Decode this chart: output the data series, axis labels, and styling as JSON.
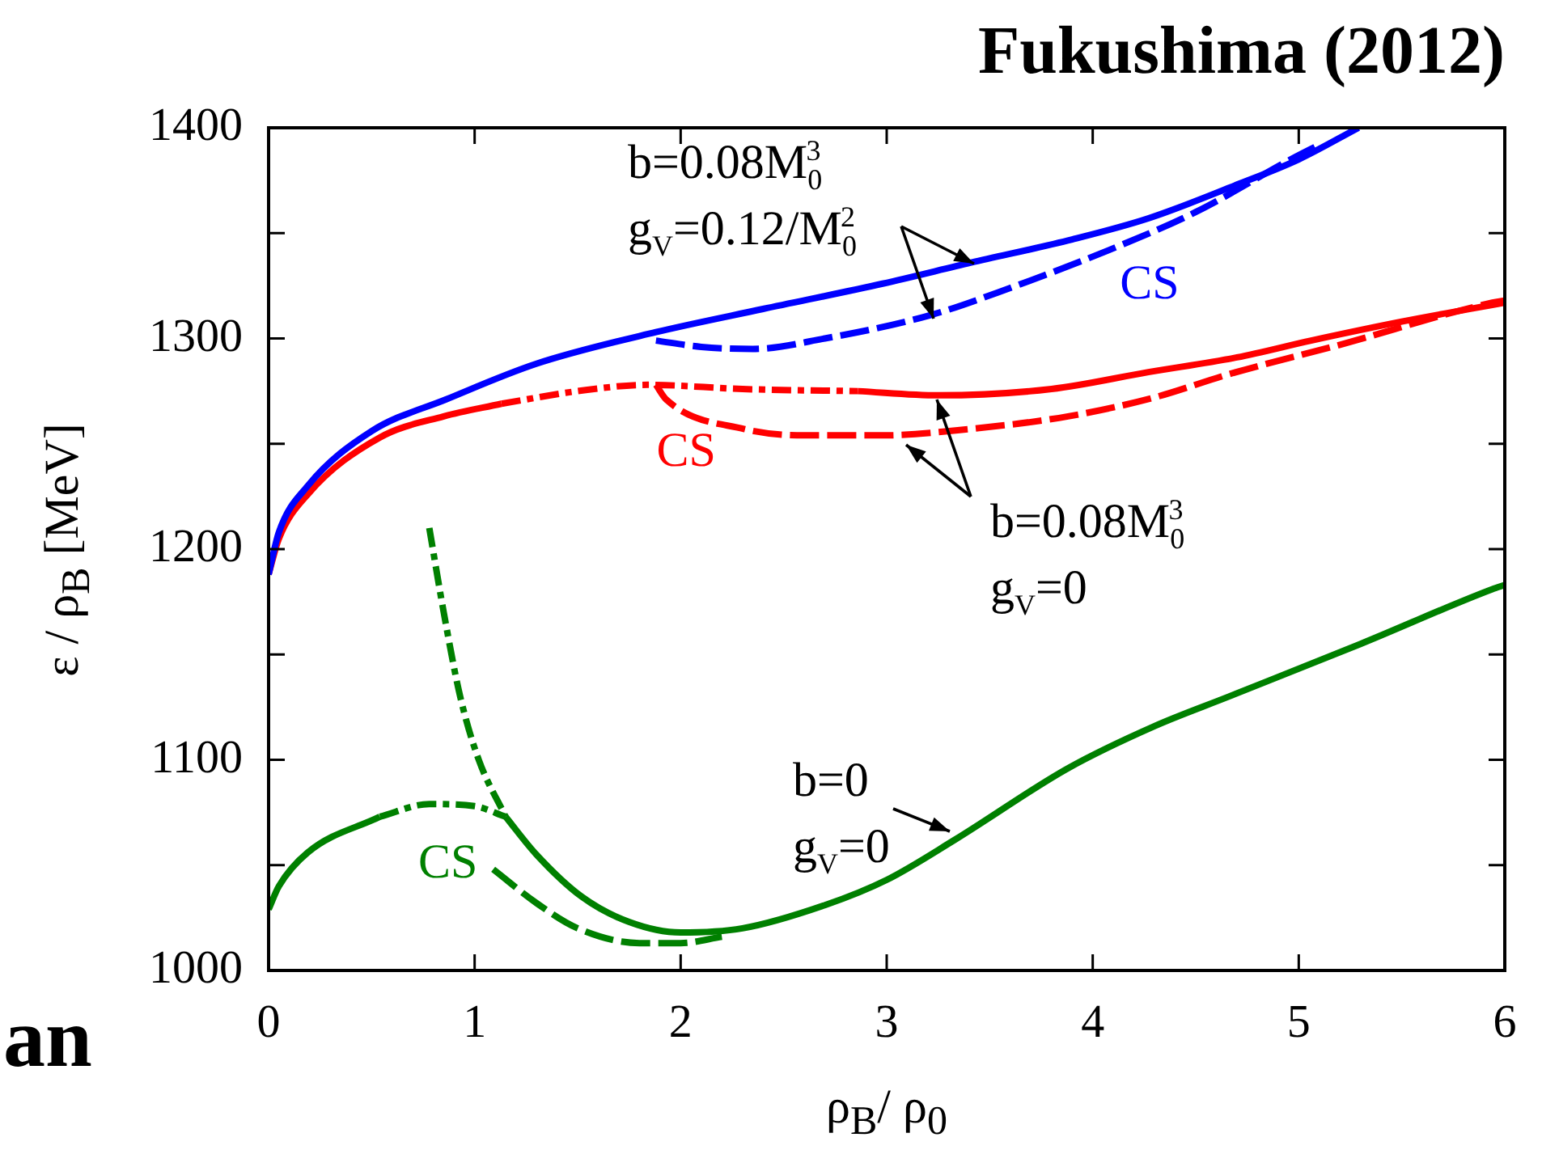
{
  "chart_data": {
    "type": "line",
    "title": "Fukushima (2012)",
    "xlabel": "ρ$_{B}$/ ρ$_{0}$",
    "ylabel": "ε / ρ$_{B}$ [MeV]",
    "xlim": [
      0,
      6
    ],
    "xticks": [
      0,
      1,
      2,
      3,
      4,
      5,
      6
    ],
    "ylim": [
      1000,
      1400
    ],
    "yticks": [
      1000,
      {
        "value": 1050,
        "label": null
      },
      1100,
      {
        "value": 1150,
        "label": null
      },
      1200,
      {
        "value": 1250,
        "label": null
      },
      1300,
      {
        "value": 1350,
        "label": null
      },
      1400
    ],
    "grid": false,
    "legend": false,
    "marker": "none",
    "series": [
      {
        "color": "#0000ff",
        "line_style": "solid",
        "x": [
          0,
          0.05,
          0.19,
          0.5,
          0.86,
          1.3,
          1.88,
          2.4,
          2.98,
          3.41,
          3.9,
          4.27,
          4.7,
          5.0,
          5.29
        ],
        "values": [
          1188,
          1208,
          1230,
          1256,
          1271,
          1288,
          1303,
          1314,
          1326,
          1336,
          1347,
          1357,
          1373,
          1385,
          1400
        ]
      },
      {
        "name": "CS",
        "color": "#0000ff",
        "line_style": "dashed",
        "x": [
          1.88,
          2.1,
          2.35,
          2.7,
          3.21,
          3.6,
          4.08,
          4.5,
          4.98,
          5.1
        ],
        "values": [
          1299,
          1296,
          1295,
          1300,
          1311,
          1324,
          1342,
          1360,
          1386,
          1392
        ]
      },
      {
        "color": "#ff0000",
        "line_style": "solid",
        "x": [
          0,
          0.05,
          0.19,
          0.54,
          0.85,
          1.13
        ],
        "values": [
          1188,
          1205,
          1226,
          1253,
          1263,
          1269
        ]
      },
      {
        "color": "#ff0000",
        "line_style": "solid",
        "x": [
          2.86,
          3.25,
          3.8,
          4.27,
          4.7,
          5.06,
          5.5,
          6
        ],
        "values": [
          1275,
          1273,
          1276,
          1284,
          1291,
          1299,
          1308,
          1317
        ]
      },
      {
        "color": "#ff0000",
        "line_style": "dotted",
        "x": [
          1.13,
          1.5,
          1.84,
          2.3,
          2.86
        ],
        "values": [
          1269,
          1275,
          1278,
          1276,
          1275
        ]
      },
      {
        "name": "CS",
        "color": "#ff0000",
        "line_style": "dashed",
        "x": [
          1.88,
          1.93,
          2.31,
          2.6,
          2.98,
          3.4,
          3.88,
          4.3,
          4.66,
          5.2,
          5.94,
          6
        ],
        "values": [
          1278,
          1271,
          1257,
          1254,
          1254,
          1257,
          1263,
          1272,
          1283,
          1297,
          1317,
          1318
        ]
      },
      {
        "color": "#008000",
        "line_style": "solid",
        "x": [
          0,
          0.05,
          0.19,
          0.54
        ],
        "values": [
          1029,
          1040,
          1056,
          1073
        ]
      },
      {
        "color": "#008000",
        "line_style": "solid",
        "x": [
          1.15,
          1.3,
          1.52,
          1.75,
          2.0,
          2.3,
          2.7,
          3.0,
          3.33,
          3.88,
          4.3,
          4.66,
          5.3,
          5.94,
          6
        ],
        "values": [
          1073,
          1055,
          1035,
          1023,
          1018,
          1020,
          1031,
          1043,
          1062,
          1096,
          1116,
          1130,
          1155,
          1181,
          1183
        ]
      },
      {
        "color": "#008000",
        "line_style": "dotted",
        "x": [
          0.54,
          0.78,
          1.0,
          1.15
        ],
        "values": [
          1073,
          1079,
          1078,
          1073
        ]
      },
      {
        "color": "#008000",
        "line_style": "dotted",
        "x": [
          0.78,
          0.85,
          0.93,
          1.02,
          1.15
        ],
        "values": [
          1210,
          1170,
          1130,
          1100,
          1073
        ]
      },
      {
        "name": "CS",
        "color": "#008000",
        "line_style": "dashed",
        "x": [
          1.09,
          1.3,
          1.5,
          1.8,
          2.0,
          2.2
        ],
        "values": [
          1048,
          1032,
          1020,
          1013,
          1013,
          1016
        ]
      }
    ],
    "annotations": [
      "b=0.08M$_{0}$$^{3}$\ng$_{V}$=0.12/M$_{0}$$^{2}$",
      "b=0.08M$_{0}$$^{3}$\ng$_{V}$=0",
      "b=0\ng$_{V}$=0",
      "an"
    ]
  }
}
